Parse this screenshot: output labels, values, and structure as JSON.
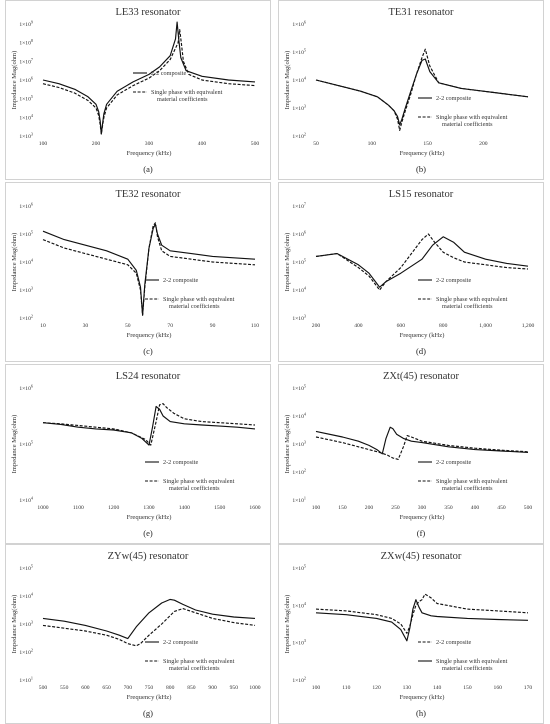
{
  "chart_data": [
    {
      "type": "line",
      "id": "a",
      "caption": "(a)",
      "title": "LE33 resonator",
      "xlabel": "Frequency (kHz)",
      "ylabel": "Impedance Mag(ohm)",
      "xlim": [
        100,
        500
      ],
      "xticks": [
        100,
        200,
        300,
        400,
        500
      ],
      "ylog": [
        3,
        9
      ],
      "ytick_base": "1×10",
      "yticks": [
        3,
        4,
        5,
        6,
        7,
        8,
        9
      ],
      "legend_pos": "center-right",
      "series": [
        {
          "name": "2-2 composite",
          "style": "solid",
          "x": [
            100,
            130,
            160,
            185,
            200,
            205,
            208,
            210,
            212,
            215,
            220,
            240,
            270,
            300,
            320,
            340,
            350,
            353,
            356,
            360,
            370,
            400,
            450,
            500
          ],
          "y": [
            6.0,
            5.8,
            5.5,
            5.1,
            4.7,
            4.3,
            3.8,
            3.1,
            3.6,
            4.2,
            4.7,
            5.4,
            5.9,
            6.3,
            6.7,
            7.3,
            8.2,
            9.1,
            8.2,
            7.2,
            6.5,
            6.2,
            6.0,
            5.9
          ]
        },
        {
          "name": "Single phase with equivalent material coefficients",
          "style": "dashed",
          "x": [
            100,
            130,
            160,
            185,
            200,
            205,
            208,
            210,
            212,
            215,
            220,
            240,
            270,
            300,
            320,
            340,
            355,
            358,
            361,
            365,
            375,
            400,
            450,
            500
          ],
          "y": [
            5.8,
            5.6,
            5.3,
            4.9,
            4.5,
            4.1,
            3.6,
            3.1,
            3.5,
            4.0,
            4.5,
            5.2,
            5.7,
            6.1,
            6.5,
            7.1,
            8.0,
            8.7,
            8.0,
            7.0,
            6.3,
            6.0,
            5.8,
            5.7
          ]
        }
      ]
    },
    {
      "type": "line",
      "id": "b",
      "caption": "(b)",
      "title": "TE31 resonator",
      "xlabel": "Frequency (kHz)",
      "ylabel": "Impedance Mag(ohm)",
      "xlim": [
        50,
        240
      ],
      "xticks": [
        50,
        100,
        150,
        200
      ],
      "ylog": [
        2,
        6
      ],
      "ytick_base": "1×10",
      "yticks": [
        2,
        3,
        4,
        5,
        6
      ],
      "legend_pos": "bottom-right",
      "series": [
        {
          "name": "2-2 composite",
          "style": "solid",
          "x": [
            50,
            70,
            90,
            105,
            115,
            120,
            123,
            125,
            127,
            130,
            135,
            140,
            145,
            148,
            152,
            160,
            180,
            200,
            220,
            240
          ],
          "y": [
            4.0,
            3.8,
            3.6,
            3.4,
            3.1,
            2.9,
            2.7,
            2.4,
            2.6,
            3.0,
            3.6,
            4.2,
            4.7,
            4.75,
            4.3,
            3.9,
            3.7,
            3.6,
            3.5,
            3.4
          ]
        },
        {
          "name": "Single phase with equivalent material coefficients",
          "style": "dashed",
          "x": [
            50,
            70,
            90,
            105,
            115,
            120,
            123,
            125,
            127,
            130,
            135,
            140,
            145,
            148,
            152,
            160,
            180,
            200,
            220,
            240
          ],
          "y": [
            4.0,
            3.8,
            3.6,
            3.4,
            3.1,
            2.9,
            2.6,
            2.2,
            2.5,
            2.9,
            3.5,
            4.2,
            4.8,
            5.1,
            4.5,
            3.9,
            3.7,
            3.6,
            3.5,
            3.4
          ]
        }
      ]
    },
    {
      "type": "line",
      "id": "c",
      "caption": "(c)",
      "title": "TE32 resonator",
      "xlabel": "Frequency (kHz)",
      "ylabel": "Impedance Mag(ohm)",
      "xlim": [
        10,
        110
      ],
      "xticks": [
        10,
        30,
        50,
        70,
        90,
        110
      ],
      "ylog": [
        2,
        6
      ],
      "ytick_base": "1×10",
      "yticks": [
        2,
        3,
        4,
        5,
        6
      ],
      "legend_pos": "bottom-right",
      "series": [
        {
          "name": "2-2 composite",
          "style": "solid",
          "x": [
            10,
            20,
            30,
            40,
            50,
            54,
            56,
            57,
            58,
            60,
            62,
            63,
            64,
            66,
            70,
            80,
            90,
            100,
            110
          ],
          "y": [
            5.1,
            4.8,
            4.6,
            4.4,
            4.1,
            3.7,
            3.1,
            2.1,
            3.2,
            4.5,
            5.2,
            5.35,
            5.0,
            4.6,
            4.4,
            4.3,
            4.2,
            4.15,
            4.1
          ]
        },
        {
          "name": "Single phase with equivalent material coefficients",
          "style": "dashed",
          "x": [
            10,
            20,
            30,
            40,
            50,
            54,
            56,
            57,
            58,
            60,
            62,
            63,
            64,
            66,
            70,
            80,
            90,
            100,
            110
          ],
          "y": [
            4.8,
            4.5,
            4.3,
            4.1,
            3.9,
            3.6,
            3.0,
            2.1,
            3.1,
            4.5,
            5.3,
            5.4,
            4.9,
            4.4,
            4.2,
            4.1,
            4.0,
            3.95,
            3.9
          ]
        }
      ]
    },
    {
      "type": "line",
      "id": "d",
      "caption": "(d)",
      "title": "LS15 resonator",
      "xlabel": "Frequency (kHz)",
      "ylabel": "Impedance Mag(ohm)",
      "xlim": [
        200,
        1200
      ],
      "xticks": [
        200,
        400,
        600,
        800,
        1000,
        1200
      ],
      "xticklabels": [
        "200",
        "400",
        "600",
        "800",
        "1,000",
        "1,200"
      ],
      "ylog": [
        3,
        7
      ],
      "ytick_base": "1×10",
      "yticks": [
        3,
        4,
        5,
        6,
        7
      ],
      "legend_pos": "bottom-right",
      "series": [
        {
          "name": "2-2 composite",
          "style": "solid",
          "x": [
            200,
            300,
            400,
            450,
            480,
            500,
            530,
            600,
            700,
            750,
            800,
            850,
            900,
            1000,
            1100,
            1200
          ],
          "y": [
            5.2,
            5.3,
            4.9,
            4.6,
            4.3,
            4.1,
            4.3,
            4.6,
            5.1,
            5.6,
            5.9,
            5.7,
            5.35,
            5.1,
            4.95,
            4.85
          ]
        },
        {
          "name": "Single phase with equivalent material coefficients",
          "style": "dashed",
          "x": [
            200,
            300,
            400,
            450,
            480,
            500,
            530,
            600,
            650,
            700,
            730,
            760,
            800,
            850,
            900,
            1000,
            1100,
            1200
          ],
          "y": [
            5.2,
            5.3,
            4.8,
            4.5,
            4.2,
            4.0,
            4.3,
            4.8,
            5.3,
            5.8,
            6.0,
            5.7,
            5.35,
            5.15,
            5.0,
            4.9,
            4.8,
            4.75
          ]
        }
      ]
    },
    {
      "type": "line",
      "id": "e",
      "caption": "(e)",
      "title": "LS24 resonator",
      "xlabel": "Frequency (kHz)",
      "ylabel": "Impedance Mag(ohm)",
      "xlim": [
        1000,
        1600
      ],
      "xticks": [
        1000,
        1100,
        1200,
        1300,
        1400,
        1500,
        1600
      ],
      "ylog": [
        4,
        6
      ],
      "ytick_base": "1×10",
      "yticks": [
        4,
        5,
        6
      ],
      "legend_pos": "bottom-right",
      "series": [
        {
          "name": "2-2 composite",
          "style": "solid",
          "x": [
            1000,
            1050,
            1100,
            1150,
            1200,
            1250,
            1280,
            1300,
            1310,
            1320,
            1330,
            1340,
            1360,
            1400,
            1450,
            1500,
            1550,
            1600
          ],
          "y": [
            5.38,
            5.35,
            5.3,
            5.27,
            5.25,
            5.2,
            5.1,
            4.98,
            5.3,
            5.67,
            5.62,
            5.5,
            5.4,
            5.36,
            5.34,
            5.32,
            5.3,
            5.27
          ]
        },
        {
          "name": "Single phase with equivalent material coefficients",
          "style": "dashed",
          "x": [
            1000,
            1050,
            1100,
            1150,
            1200,
            1250,
            1290,
            1305,
            1320,
            1330,
            1340,
            1350,
            1370,
            1400,
            1450,
            1500,
            1550,
            1600
          ],
          "y": [
            5.38,
            5.36,
            5.33,
            5.3,
            5.27,
            5.2,
            5.08,
            4.98,
            5.4,
            5.7,
            5.72,
            5.65,
            5.55,
            5.45,
            5.4,
            5.38,
            5.36,
            5.34
          ]
        }
      ]
    },
    {
      "type": "line",
      "id": "f",
      "caption": "(f)",
      "title": "ZXt(45) resonator",
      "xlabel": "Frequency (kHz)",
      "ylabel": "Impedance Mag(ohm)",
      "xlim": [
        100,
        500
      ],
      "xticks": [
        100,
        150,
        200,
        250,
        300,
        350,
        400,
        450,
        500
      ],
      "ylog": [
        1,
        5
      ],
      "ytick_base": "1×10",
      "yticks": [
        1,
        2,
        3,
        4,
        5
      ],
      "legend_pos": "bottom-right",
      "series": [
        {
          "name": "2-2 composite",
          "style": "solid",
          "x": [
            100,
            150,
            180,
            200,
            215,
            225,
            232,
            240,
            245,
            252,
            265,
            280,
            300,
            350,
            400,
            450,
            500
          ],
          "y": [
            3.45,
            3.25,
            3.1,
            2.95,
            2.8,
            2.65,
            3.2,
            3.6,
            3.55,
            3.35,
            3.2,
            3.1,
            3.05,
            2.9,
            2.8,
            2.75,
            2.7
          ]
        },
        {
          "name": "Single phase with equivalent material coefficients",
          "style": "dashed",
          "x": [
            100,
            150,
            180,
            200,
            220,
            235,
            245,
            255,
            265,
            272,
            280,
            300,
            350,
            400,
            450,
            500
          ],
          "y": [
            3.25,
            3.05,
            2.9,
            2.8,
            2.7,
            2.6,
            2.5,
            2.45,
            2.9,
            3.3,
            3.25,
            3.1,
            2.95,
            2.85,
            2.78,
            2.72
          ]
        }
      ]
    },
    {
      "type": "line",
      "id": "g",
      "caption": "(g)",
      "title": "ZYw(45) resonator",
      "xlabel": "Frequency (kHz)",
      "ylabel": "Impedance Mag(ohm)",
      "xlim": [
        500,
        1000
      ],
      "xticks": [
        500,
        550,
        600,
        650,
        700,
        750,
        800,
        850,
        900,
        950,
        1000
      ],
      "ylog": [
        1,
        5
      ],
      "ytick_base": "1×10",
      "yticks": [
        1,
        2,
        3,
        4,
        5
      ],
      "legend_pos": "bottom-right",
      "series": [
        {
          "name": "2-2 composite",
          "style": "solid",
          "x": [
            500,
            550,
            600,
            650,
            680,
            700,
            720,
            750,
            780,
            800,
            810,
            830,
            860,
            900,
            950,
            1000
          ],
          "y": [
            3.2,
            3.1,
            2.95,
            2.75,
            2.6,
            2.48,
            2.9,
            3.4,
            3.75,
            3.88,
            3.85,
            3.7,
            3.5,
            3.35,
            3.25,
            3.2
          ]
        },
        {
          "name": "Single phase with equivalent material coefficients",
          "style": "dashed",
          "x": [
            500,
            550,
            600,
            650,
            680,
            700,
            720,
            730,
            750,
            780,
            810,
            830,
            860,
            900,
            950,
            1000
          ],
          "y": [
            2.95,
            2.85,
            2.75,
            2.6,
            2.45,
            2.3,
            2.22,
            2.3,
            2.6,
            3.0,
            3.45,
            3.55,
            3.4,
            3.2,
            3.05,
            2.95
          ]
        }
      ]
    },
    {
      "type": "line",
      "id": "h",
      "caption": "(h)",
      "title": "ZXw(45) resonator",
      "xlabel": "Frequency (kHz)",
      "ylabel": "Impedance Mag(ohm)",
      "xlim": [
        100,
        170
      ],
      "xticks": [
        100,
        110,
        120,
        130,
        140,
        150,
        160,
        170
      ],
      "ylog": [
        2,
        5
      ],
      "ytick_base": "1×10",
      "yticks": [
        2,
        3,
        4,
        5
      ],
      "legend_pos": "bottom-right",
      "series": [
        {
          "name": "2-2 composite",
          "style": "dashed",
          "x": [
            100,
            110,
            120,
            125,
            128,
            130,
            131,
            132,
            133,
            134,
            135,
            136,
            138,
            140,
            150,
            160,
            170
          ],
          "y": [
            3.9,
            3.85,
            3.75,
            3.65,
            3.5,
            3.25,
            3.45,
            3.75,
            4.0,
            4.1,
            4.15,
            4.3,
            4.2,
            4.05,
            3.9,
            3.85,
            3.8
          ]
        },
        {
          "name": "Single phase with equivalent material coefficients",
          "style": "solid",
          "x": [
            100,
            110,
            120,
            125,
            128,
            129,
            130,
            131,
            132,
            133,
            134,
            135,
            138,
            140,
            150,
            160,
            170
          ],
          "y": [
            3.8,
            3.75,
            3.65,
            3.55,
            3.35,
            3.2,
            3.05,
            3.4,
            3.9,
            4.15,
            3.95,
            3.8,
            3.72,
            3.7,
            3.65,
            3.62,
            3.6
          ]
        }
      ]
    }
  ]
}
